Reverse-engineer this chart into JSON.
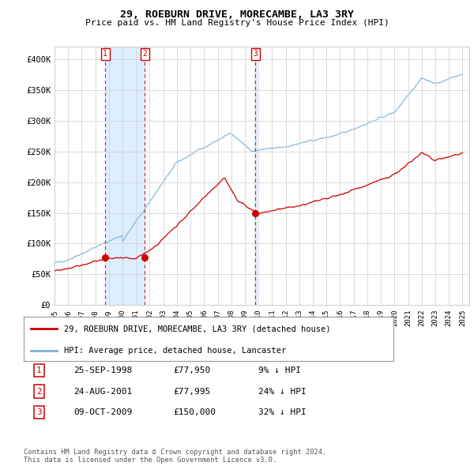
{
  "title": "29, ROEBURN DRIVE, MORECAMBE, LA3 3RY",
  "subtitle": "Price paid vs. HM Land Registry's House Price Index (HPI)",
  "ylim": [
    0,
    420000
  ],
  "yticks": [
    0,
    50000,
    100000,
    150000,
    200000,
    250000,
    300000,
    350000,
    400000
  ],
  "ytick_labels": [
    "£0",
    "£50K",
    "£100K",
    "£150K",
    "£200K",
    "£250K",
    "£300K",
    "£350K",
    "£400K"
  ],
  "background_color": "#ffffff",
  "grid_color": "#cccccc",
  "red_color": "#cc0000",
  "blue_color": "#7ab0d4",
  "shade_color": "#ddeeff",
  "transaction_markers": [
    {
      "label": "1",
      "date_x": 1998.73,
      "price": 77950
    },
    {
      "label": "2",
      "date_x": 2001.65,
      "price": 77995
    },
    {
      "label": "3",
      "date_x": 2009.77,
      "price": 150000
    }
  ],
  "table_rows": [
    {
      "num": "1",
      "date": "25-SEP-1998",
      "price": "£77,950",
      "pct": "9% ↓ HPI"
    },
    {
      "num": "2",
      "date": "24-AUG-2001",
      "price": "£77,995",
      "pct": "24% ↓ HPI"
    },
    {
      "num": "3",
      "date": "09-OCT-2009",
      "price": "£150,000",
      "pct": "32% ↓ HPI"
    }
  ],
  "footer": "Contains HM Land Registry data © Crown copyright and database right 2024.\nThis data is licensed under the Open Government Licence v3.0.",
  "xlim": [
    1995.0,
    2025.5
  ],
  "xtick_years": [
    1995,
    1996,
    1997,
    1998,
    1999,
    2000,
    2001,
    2002,
    2003,
    2004,
    2005,
    2006,
    2007,
    2008,
    2009,
    2010,
    2011,
    2012,
    2013,
    2014,
    2015,
    2016,
    2017,
    2018,
    2019,
    2020,
    2021,
    2022,
    2023,
    2024,
    2025
  ]
}
